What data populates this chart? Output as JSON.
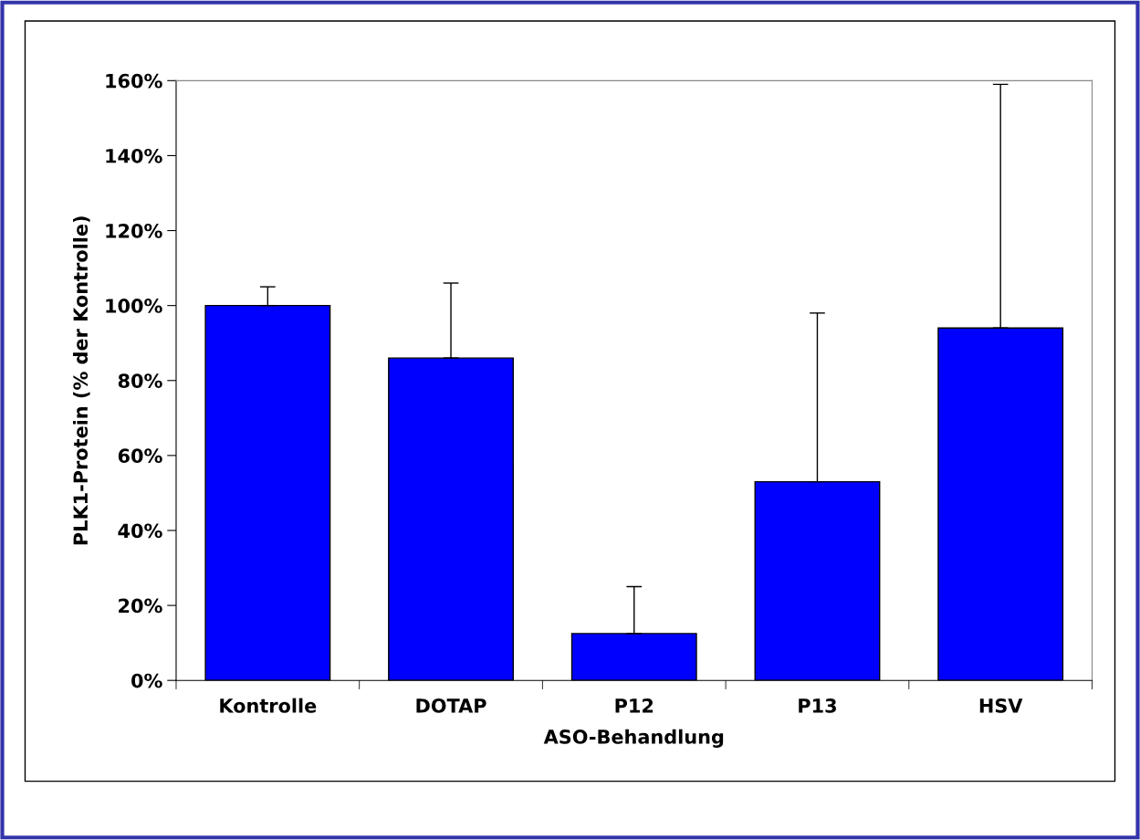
{
  "chart_data": {
    "type": "bar",
    "xlabel": "ASO-Behandlung",
    "ylabel": "PLK1-Protein (% der Kontrolle)",
    "categories": [
      "Kontrolle",
      "DOTAP",
      "P12",
      "P13",
      "HSV"
    ],
    "values": [
      100,
      86,
      12.5,
      53,
      94
    ],
    "errors": [
      [
        100,
        105
      ],
      [
        86,
        106
      ],
      [
        12.5,
        25
      ],
      [
        53,
        98
      ],
      [
        94,
        159
      ]
    ],
    "color": "#0000ff",
    "ylim": [
      0,
      160
    ],
    "yticks": [
      {
        "value": 0,
        "label": "0%"
      },
      {
        "value": 20,
        "label": "20%"
      },
      {
        "value": 40,
        "label": "40%"
      },
      {
        "value": 60,
        "label": "60%"
      },
      {
        "value": 80,
        "label": "80%"
      },
      {
        "value": 100,
        "label": "100%"
      },
      {
        "value": 120,
        "label": "120%"
      },
      {
        "value": 140,
        "label": "140%"
      },
      {
        "value": 160,
        "label": "160%"
      }
    ],
    "grid": false,
    "legend": false
  }
}
